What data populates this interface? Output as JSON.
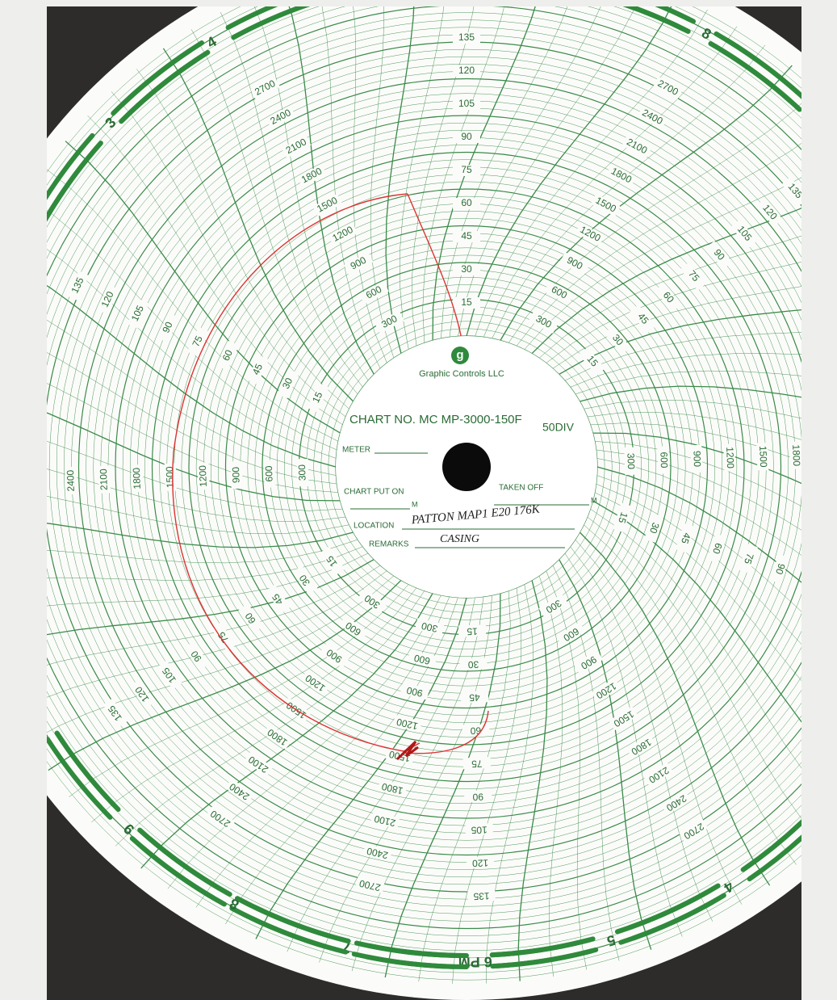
{
  "logo": {
    "letter": "g",
    "name": "Graphic Controls LLC"
  },
  "chart_number": "CHART NO. MC MP-3000-150F",
  "divisions": "50DIV",
  "fields": {
    "meter": "METER",
    "put_on": "CHART PUT ON",
    "taken_off": "TAKEN OFF",
    "unit_a": "M",
    "unit_b": "M",
    "location": "LOCATION",
    "remarks": "REMARKS"
  },
  "handwritten": {
    "location": "PATTON MAP1 E20 176K",
    "remarks": "CASING"
  },
  "scales": {
    "temperature": [
      15,
      30,
      45,
      60,
      75,
      90,
      105,
      120,
      135
    ],
    "pressure": [
      300,
      600,
      900,
      1200,
      1500,
      1800,
      2100,
      2400,
      2700
    ]
  },
  "hours": [
    "3",
    "4",
    "7",
    "8",
    "9",
    "4",
    "5",
    "6 PM",
    "7",
    "8",
    "9"
  ]
}
